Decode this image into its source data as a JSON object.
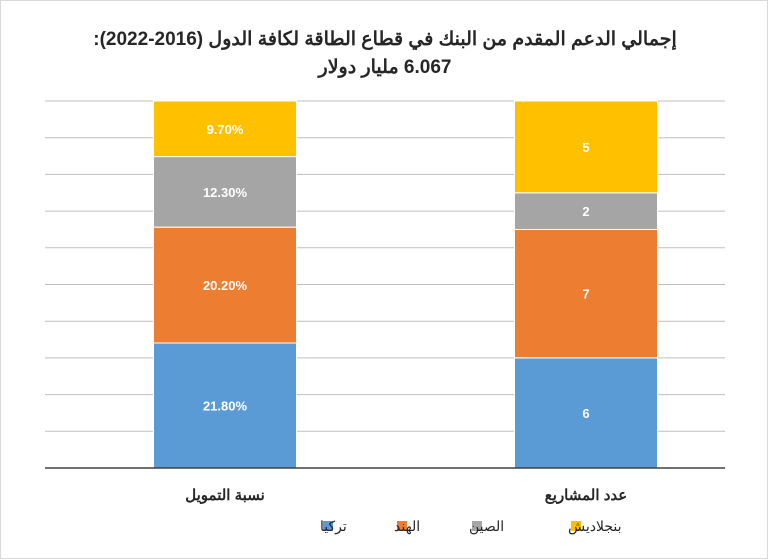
{
  "chart_data": {
    "type": "bar",
    "stacked": true,
    "title": "إجمالي الدعم المقدم من البنك في قطاع الطاقة لكافة الدول (2016-2022):",
    "subtitle": "6.067 مليار دولار",
    "categories": [
      "نسبة التمويل",
      "عدد المشاريع"
    ],
    "series": [
      {
        "name": "تركيا",
        "values": [
          21.8,
          6
        ],
        "labels": [
          "21.80%",
          "6"
        ],
        "color": "#5b9bd5"
      },
      {
        "name": "الهند",
        "values": [
          20.2,
          7
        ],
        "labels": [
          "20.20%",
          "7"
        ],
        "color": "#ed7d31"
      },
      {
        "name": "الصين",
        "values": [
          12.3,
          2
        ],
        "labels": [
          "12.30%",
          "2"
        ],
        "color": "#a5a5a5"
      },
      {
        "name": "بنجلاديش",
        "values": [
          9.7,
          5
        ],
        "labels": [
          "9.70%",
          "5"
        ],
        "color": "#ffc000"
      }
    ],
    "legend_position": "bottom",
    "grid": true,
    "axis_color": "#404040",
    "grid_color": "#bfbfbf"
  }
}
